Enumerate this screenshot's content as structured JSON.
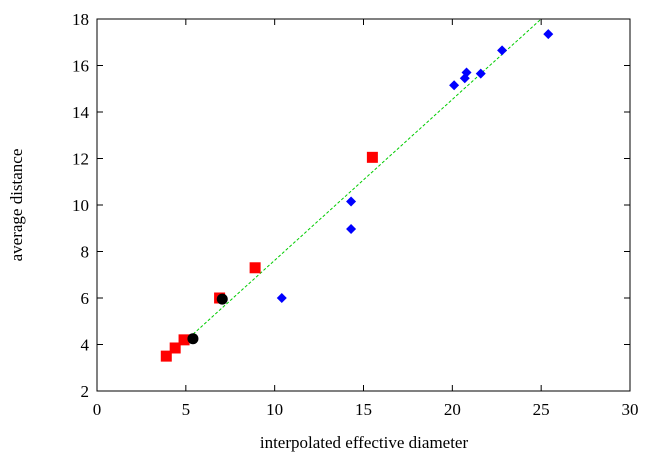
{
  "chart_data": {
    "type": "scatter",
    "title": "",
    "xlabel": "interpolated effective diameter",
    "ylabel": "average distance",
    "xlim": [
      0,
      30
    ],
    "ylim": [
      2,
      18
    ],
    "xticks": [
      0,
      5,
      10,
      15,
      20,
      25,
      30
    ],
    "yticks": [
      2,
      4,
      6,
      8,
      10,
      12,
      14,
      16,
      18
    ],
    "xtick_labels": [
      "0",
      "5",
      "10",
      "15",
      "20",
      "25",
      "30"
    ],
    "ytick_labels": [
      "2",
      "4",
      "6",
      "8",
      "10",
      "12",
      "14",
      "16",
      "18"
    ],
    "grid": false,
    "legend": "none",
    "series": [
      {
        "marker": "square",
        "color": "#ff0000",
        "points": [
          [
            3.9,
            3.5
          ],
          [
            4.4,
            3.85
          ],
          [
            4.9,
            4.2
          ],
          [
            6.9,
            6.0
          ],
          [
            8.9,
            7.3
          ],
          [
            15.5,
            12.05
          ]
        ]
      },
      {
        "marker": "circle",
        "color": "#000000",
        "points": [
          [
            5.4,
            4.25
          ],
          [
            7.05,
            5.95
          ]
        ]
      },
      {
        "marker": "diamond",
        "color": "#0000ff",
        "points": [
          [
            10.4,
            6.0
          ],
          [
            14.3,
            8.97
          ],
          [
            14.3,
            10.15
          ],
          [
            20.1,
            15.15
          ],
          [
            20.7,
            15.45
          ],
          [
            20.8,
            15.7
          ],
          [
            21.6,
            15.65
          ],
          [
            22.8,
            16.65
          ],
          [
            25.4,
            17.35
          ]
        ]
      }
    ],
    "fit_line": {
      "style": "dashed",
      "color": "#00cc00",
      "points": [
        [
          5.2,
          4.3
        ],
        [
          25.0,
          18.0
        ]
      ]
    }
  }
}
